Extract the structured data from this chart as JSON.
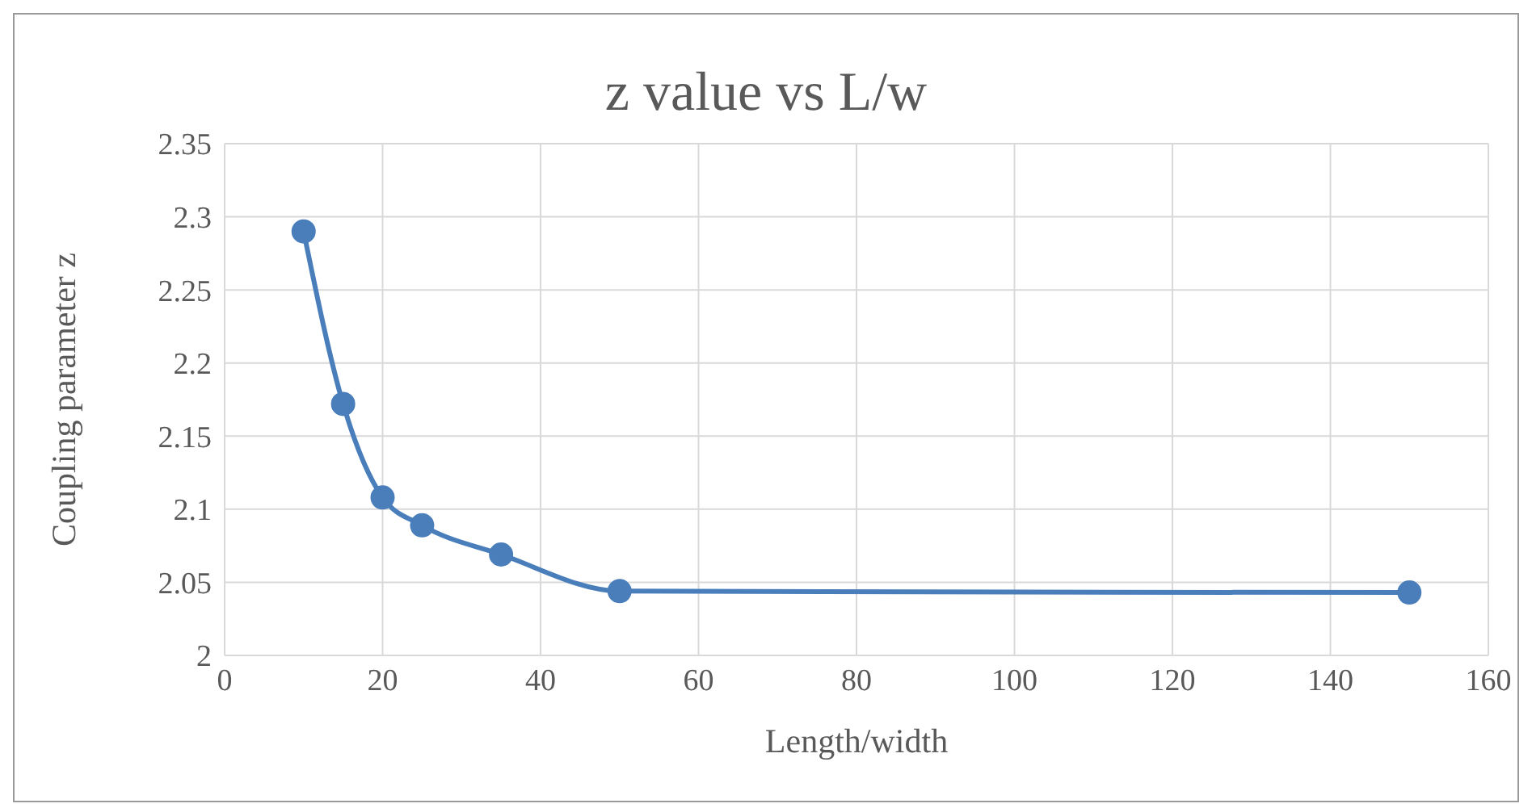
{
  "chart_data": {
    "type": "line",
    "title": "z value vs L/w",
    "xlabel": "Length/width",
    "ylabel": "Coupling parameter z",
    "x": [
      10,
      15,
      20,
      25,
      35,
      50,
      150
    ],
    "series": [
      {
        "color": "#4a7ebb",
        "values": [
          2.29,
          2.172,
          2.108,
          2.089,
          2.069,
          2.044,
          2.043
        ]
      }
    ],
    "xlim": [
      0,
      160
    ],
    "xticks": [
      0,
      20,
      40,
      60,
      80,
      100,
      120,
      140,
      160
    ],
    "ylim": [
      2,
      2.35
    ],
    "yticks": [
      2,
      2.05,
      2.1,
      2.15,
      2.2,
      2.25,
      2.3,
      2.35
    ],
    "grid": true,
    "marker": "circle",
    "line_style": "solid",
    "legend": false
  }
}
